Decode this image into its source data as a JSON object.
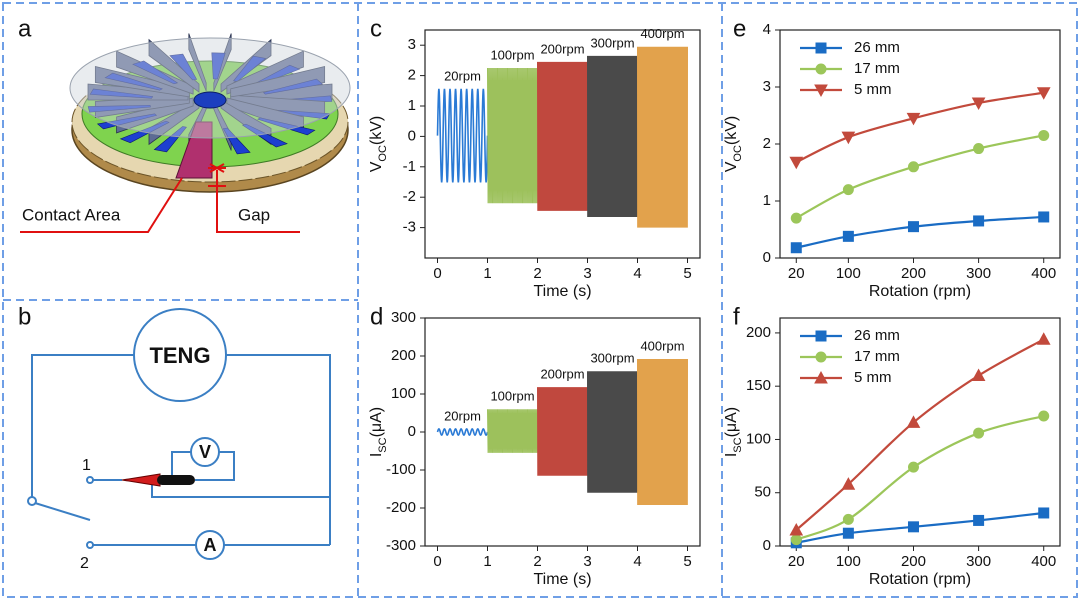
{
  "diagram_a": {
    "label": "a",
    "contact_area": "Contact Area",
    "gap": "Gap"
  },
  "diagram_b": {
    "label": "b",
    "source": "TENG",
    "voltmeter": "V",
    "ammeter": "A",
    "terminal_1": "1",
    "terminal_2": "2"
  },
  "chart_data": [
    {
      "type": "waveform",
      "panel": "c",
      "xlabel": "Time (s)",
      "ylabel": [
        "V",
        "OC",
        "(kV)"
      ],
      "xlim": [
        -0.25,
        5.25
      ],
      "ylim": [
        -4,
        3.5
      ],
      "xticks": [
        0,
        1,
        2,
        3,
        4,
        5
      ],
      "yticks": [
        -3,
        -2,
        -1,
        0,
        1,
        2,
        3
      ],
      "segments": [
        {
          "label": "20rpm",
          "x": [
            0,
            1
          ],
          "max": 1.55,
          "min": -1.5,
          "cycles": 9,
          "color": "#2a7ad5"
        },
        {
          "label": "100rpm",
          "x": [
            1,
            2
          ],
          "max": 2.25,
          "min": -2.2,
          "cycles": 45,
          "color": "#9dc15c"
        },
        {
          "label": "200rpm",
          "x": [
            2,
            3
          ],
          "max": 2.45,
          "min": -2.45,
          "cycles": 90,
          "color": "#c0483e"
        },
        {
          "label": "300rpm",
          "x": [
            3,
            4
          ],
          "max": 2.65,
          "min": -2.65,
          "cycles": 135,
          "color": "#4a4a4a"
        },
        {
          "label": "400rpm",
          "x": [
            4,
            5
          ],
          "max": 2.95,
          "min": -3.0,
          "cycles": 180,
          "color": "#e2a24c"
        }
      ]
    },
    {
      "type": "waveform",
      "panel": "d",
      "xlabel": "Time (s)",
      "ylabel": [
        "I",
        "SC",
        "(μA)"
      ],
      "xlim": [
        -0.25,
        5.25
      ],
      "ylim": [
        -300,
        300
      ],
      "xticks": [
        0,
        1,
        2,
        3,
        4,
        5
      ],
      "yticks": [
        -300,
        -200,
        -100,
        0,
        100,
        200,
        300
      ],
      "segments": [
        {
          "label": "20rpm",
          "x": [
            0,
            1
          ],
          "max": 8,
          "min": -8,
          "cycles": 9,
          "color": "#2a7ad5"
        },
        {
          "label": "100rpm",
          "x": [
            1,
            2
          ],
          "max": 60,
          "min": -55,
          "cycles": 45,
          "color": "#9dc15c"
        },
        {
          "label": "200rpm",
          "x": [
            2,
            3
          ],
          "max": 118,
          "min": -115,
          "cycles": 90,
          "color": "#c0483e"
        },
        {
          "label": "300rpm",
          "x": [
            3,
            4
          ],
          "max": 160,
          "min": -160,
          "cycles": 135,
          "color": "#4a4a4a"
        },
        {
          "label": "400rpm",
          "x": [
            4,
            5
          ],
          "max": 192,
          "min": -192,
          "cycles": 180,
          "color": "#e2a24c"
        }
      ]
    },
    {
      "type": "line",
      "panel": "e",
      "xlabel": "Rotation (rpm)",
      "ylabel": [
        "V",
        "OC",
        "(kV)"
      ],
      "x": [
        20,
        100,
        200,
        300,
        400
      ],
      "xlim": [
        -5,
        425
      ],
      "ylim": [
        0,
        4
      ],
      "xticks": [
        20,
        100,
        200,
        300,
        400
      ],
      "yticks": [
        0,
        1,
        2,
        3,
        4
      ],
      "legend": "upper left",
      "series": [
        {
          "name": "26 mm",
          "color": "#1a6cc4",
          "marker": "square",
          "values": [
            0.18,
            0.38,
            0.55,
            0.65,
            0.72
          ]
        },
        {
          "name": "17 mm",
          "color": "#9cc65a",
          "marker": "circle",
          "values": [
            0.7,
            1.2,
            1.6,
            1.92,
            2.15
          ]
        },
        {
          "name": "5 mm",
          "color": "#c24a3c",
          "marker": "triangle-down",
          "values": [
            1.68,
            2.12,
            2.45,
            2.72,
            2.9
          ]
        }
      ]
    },
    {
      "type": "line",
      "panel": "f",
      "xlabel": "Rotation (rpm)",
      "ylabel": [
        "I",
        "SC",
        "(μA)"
      ],
      "x": [
        20,
        100,
        200,
        300,
        400
      ],
      "xlim": [
        -5,
        425
      ],
      "ylim": [
        0,
        214
      ],
      "xticks": [
        20,
        100,
        200,
        300,
        400
      ],
      "yticks": [
        0,
        50,
        100,
        150,
        200
      ],
      "legend": "upper left",
      "series": [
        {
          "name": "26 mm",
          "color": "#1a6cc4",
          "marker": "square",
          "values": [
            3,
            12,
            18,
            24,
            31
          ]
        },
        {
          "name": "17 mm",
          "color": "#9cc65a",
          "marker": "circle",
          "values": [
            6,
            25,
            74,
            106,
            122
          ]
        },
        {
          "name": "5 mm",
          "color": "#c24a3c",
          "marker": "triangle-up",
          "values": [
            15,
            58,
            116,
            160,
            194
          ]
        }
      ]
    }
  ]
}
